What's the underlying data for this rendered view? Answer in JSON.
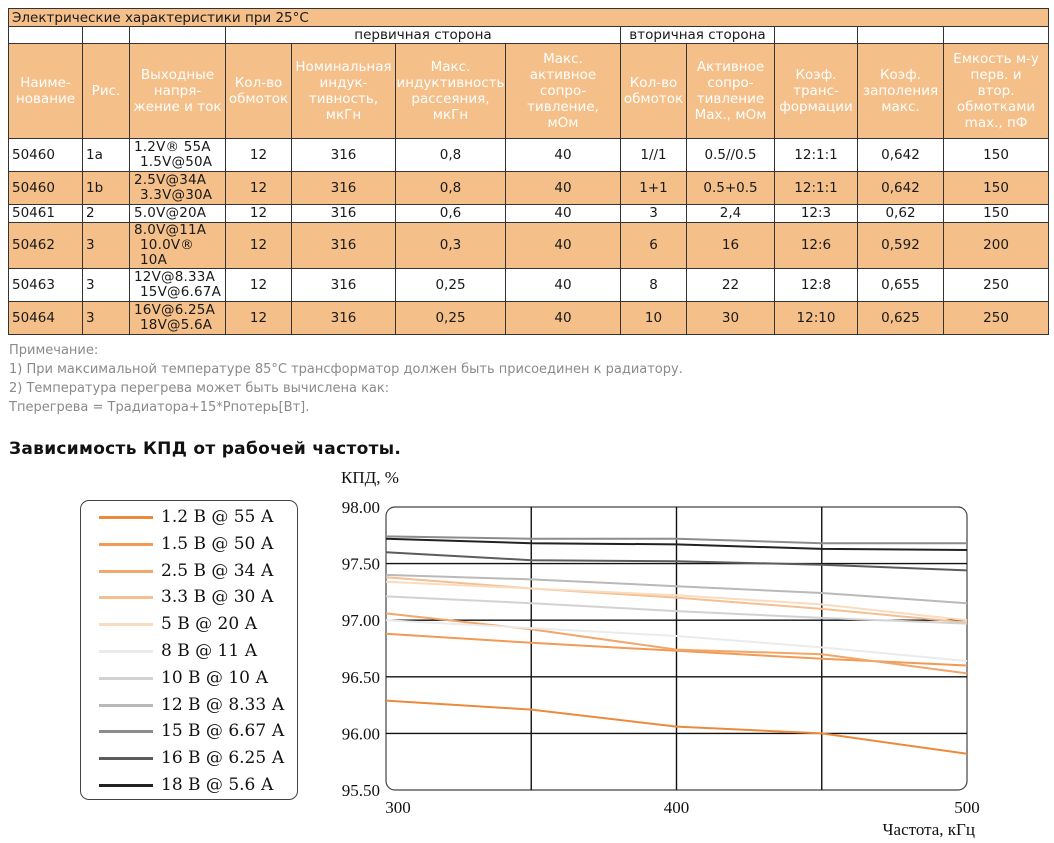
{
  "table": {
    "title": "Электрические характеристики при 25°С",
    "group_primary": "первичная сторона",
    "group_secondary": "вторичная сторона",
    "headers": [
      [
        "Наиме-",
        "нование"
      ],
      [
        "Рис."
      ],
      [
        "Выходные",
        "напря-",
        "жение и ток"
      ],
      [
        "Кол-во",
        "обмоток"
      ],
      [
        "Номинальная",
        "индук-",
        "тивность,",
        "мкГн"
      ],
      [
        "Макс.",
        "индуктивность",
        "рассеяния,",
        "мкГн"
      ],
      [
        "Макс.",
        "активное",
        "сопро-",
        "тивление,",
        "мОм"
      ],
      [
        "Кол-во",
        "обмоток"
      ],
      [
        "Активное",
        "сопро-",
        "тивление",
        "Max., мОм"
      ],
      [
        "Коэф.",
        "транс-",
        "формации"
      ],
      [
        "Коэф.",
        "заполения",
        "макс."
      ],
      [
        "Емкость м-у",
        "перв. и",
        "втор.",
        "обмотками",
        "max., пФ"
      ]
    ],
    "rows": [
      {
        "name": "50460",
        "fig": "1a",
        "v1": "1.2V® 55A",
        "v2": "1.5V@50A",
        "wind_p": "12",
        "ind": "316",
        "leak": "0,8",
        "res_p": "40",
        "wind_s": "1//1",
        "res_s": "0.5//0.5",
        "ratio": "12:1:1",
        "fill": "0,642",
        "cap": "150"
      },
      {
        "name": "50460",
        "fig": "1b",
        "v1": "2.5V@34A",
        "v2": "3.3V@30A",
        "wind_p": "12",
        "ind": "316",
        "leak": "0,8",
        "res_p": "40",
        "wind_s": "1+1",
        "res_s": "0.5+0.5",
        "ratio": "12:1:1",
        "fill": "0,642",
        "cap": "150"
      },
      {
        "name": "50461",
        "fig": "2",
        "v1": "5.0V@20A",
        "v2": "",
        "wind_p": "12",
        "ind": "316",
        "leak": "0,6",
        "res_p": "40",
        "wind_s": "3",
        "res_s": "2,4",
        "ratio": "12:3",
        "fill": "0,62",
        "cap": "150"
      },
      {
        "name": "50462",
        "fig": "3",
        "v1": "8.0V@11A",
        "v2": "10.0V® 10A",
        "wind_p": "12",
        "ind": "316",
        "leak": "0,3",
        "res_p": "40",
        "wind_s": "6",
        "res_s": "16",
        "ratio": "12:6",
        "fill": "0,592",
        "cap": "200"
      },
      {
        "name": "50463",
        "fig": "3",
        "v1": "12V@8.33A",
        "v2": "15V@6.67A",
        "wind_p": "12",
        "ind": "316",
        "leak": "0,25",
        "res_p": "40",
        "wind_s": "8",
        "res_s": "22",
        "ratio": "12:8",
        "fill": "0,655",
        "cap": "250"
      },
      {
        "name": "50464",
        "fig": "3",
        "v1": "16V@6.25A",
        "v2": "18V@5.6A",
        "wind_p": "12",
        "ind": "316",
        "leak": "0,25",
        "res_p": "40",
        "wind_s": "10",
        "res_s": "30",
        "ratio": "12:10",
        "fill": "0,625",
        "cap": "250"
      }
    ]
  },
  "notes": {
    "heading": "Примечание:",
    "line1": "1) При максимальной температуре 85°С трансформатор должен быть присоединен к радиатору.",
    "line2": "2) Температура перегрева может быть вычислена как:",
    "line3": "Тперегрева = Традиатора+15*Рпотерь[Вт]."
  },
  "section_title": "Зависимость КПД от рабочей частоты.",
  "chart_data": {
    "type": "line",
    "title": "",
    "xlabel": "Частота, кГц",
    "ylabel": "КПД, %",
    "xlim": [
      300,
      500
    ],
    "ylim": [
      95.5,
      98.0
    ],
    "x": [
      300,
      350,
      400,
      450,
      500
    ],
    "x_ticks": [
      "300",
      "400",
      "500"
    ],
    "y_ticks": [
      "98.00",
      "97.50",
      "97.00",
      "96.50",
      "96.00",
      "95.50"
    ],
    "grid": true,
    "legend_position": "left",
    "series": [
      {
        "name": "1.2 В @ 55 А",
        "color": "#ec8a3c",
        "values": [
          96.29,
          96.21,
          96.06,
          96.0,
          95.82
        ]
      },
      {
        "name": "1.5 В @ 50 А",
        "color": "#f09a55",
        "values": [
          96.88,
          96.8,
          96.73,
          96.66,
          96.6
        ]
      },
      {
        "name": "2.5 В @ 34 А",
        "color": "#f2a66a",
        "values": [
          97.06,
          96.92,
          96.74,
          96.7,
          96.53
        ]
      },
      {
        "name": "3.3 В @ 30 А",
        "color": "#f5bf92",
        "values": [
          97.38,
          97.28,
          97.2,
          97.1,
          96.98
        ]
      },
      {
        "name": "5 В @ 20 А",
        "color": "#f9dcc0",
        "values": [
          97.34,
          97.28,
          97.22,
          97.14,
          97.0
        ]
      },
      {
        "name": "8 В @ 11 А",
        "color": "#ebebeb",
        "values": [
          97.0,
          96.93,
          96.86,
          96.76,
          96.64
        ]
      },
      {
        "name": "10 В @ 10 А",
        "color": "#d2d2d2",
        "values": [
          97.21,
          97.15,
          97.08,
          97.02,
          96.97
        ]
      },
      {
        "name": "12 В @ 8.33 А",
        "color": "#b9b9b9",
        "values": [
          97.4,
          97.36,
          97.3,
          97.24,
          97.15
        ]
      },
      {
        "name": "15 В @ 6.67 А",
        "color": "#8c8c8c",
        "values": [
          97.74,
          97.72,
          97.72,
          97.68,
          97.68
        ]
      },
      {
        "name": "16 В @ 6.25 А",
        "color": "#5c5c5c",
        "values": [
          97.6,
          97.53,
          97.52,
          97.49,
          97.44
        ]
      },
      {
        "name": "18 В @ 5.6 А",
        "color": "#222222",
        "values": [
          97.72,
          97.68,
          97.67,
          97.63,
          97.62
        ]
      }
    ]
  }
}
